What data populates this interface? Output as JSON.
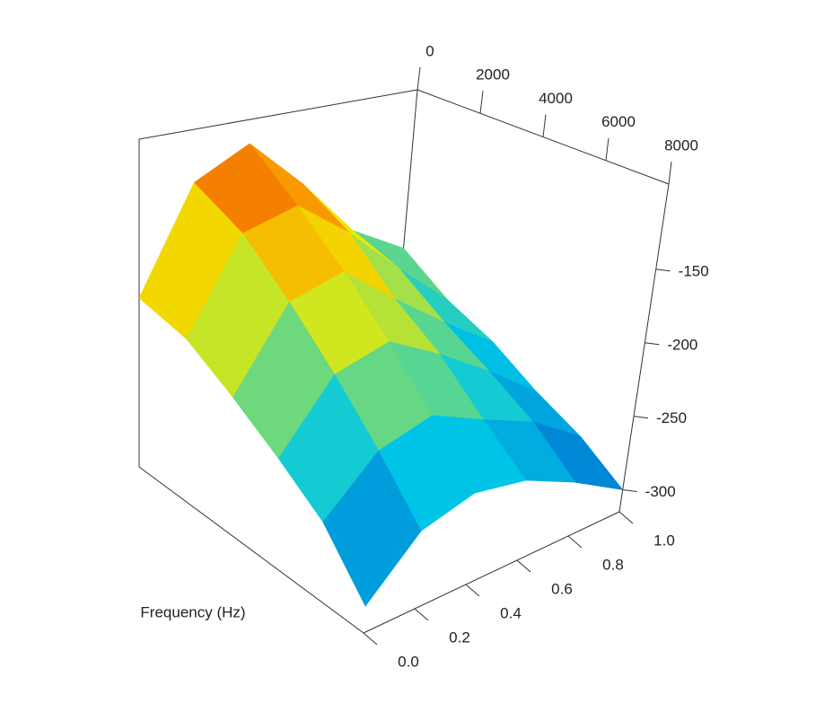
{
  "chart_data": {
    "type": "surface",
    "y_label": "Frequency (Hz)",
    "x": [
      0,
      1600,
      3200,
      4800,
      6400,
      8000
    ],
    "y": [
      0,
      0.2,
      0.4,
      0.6,
      0.8,
      1
    ],
    "z": [
      [
        -200,
        -130,
        -110,
        -150,
        -200,
        -230
      ],
      [
        -210,
        -150,
        -140,
        -170,
        -210,
        -250
      ],
      [
        -230,
        -180,
        -170,
        -200,
        -230,
        -260
      ],
      [
        -250,
        -210,
        -200,
        -220,
        -245,
        -275
      ],
      [
        -270,
        -240,
        -230,
        -245,
        -260,
        -285
      ],
      [
        -300,
        -270,
        -260,
        -265,
        -280,
        -300
      ]
    ],
    "xlim": [
      0,
      8000
    ],
    "xticks": [
      0,
      2000,
      4000,
      6000,
      8000
    ],
    "ylim": [
      0,
      1
    ],
    "yticks": [
      {
        "value": 0,
        "label": "0.0"
      },
      0.2,
      0.4,
      0.6,
      0.8,
      {
        "value": 1,
        "label": "1.0"
      }
    ],
    "zlim": [
      -315,
      -92
    ],
    "zticks": [
      -150,
      -200,
      -250,
      -300
    ]
  }
}
